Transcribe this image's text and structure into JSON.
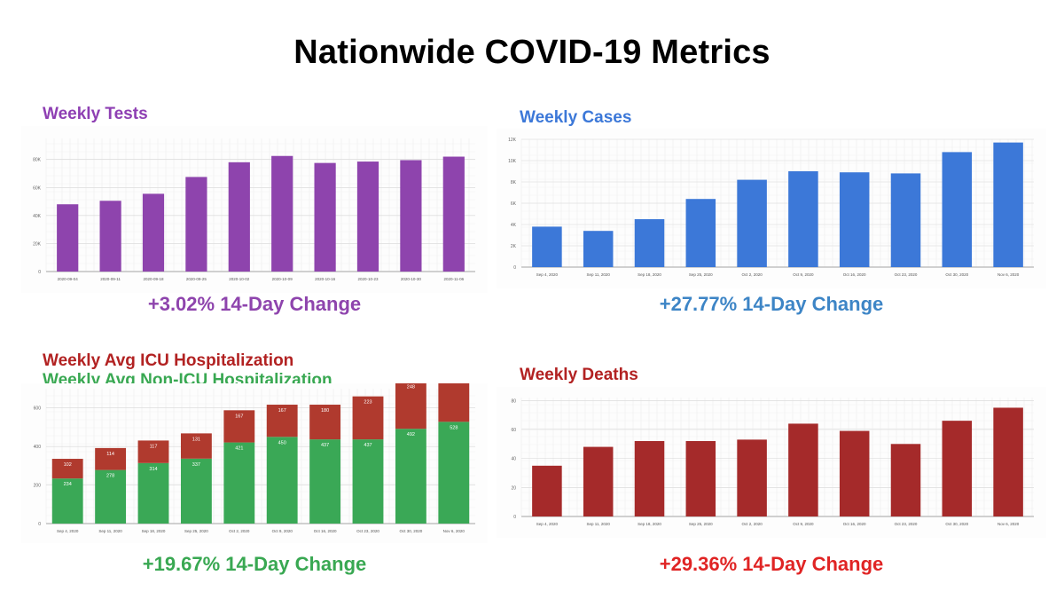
{
  "title": "Nationwide COVID-19 Metrics",
  "colors": {
    "purple": "#8e44ad",
    "blue": "#3c78d8",
    "darkred": "#a52a2a",
    "icu_red": "#b03a2e",
    "green": "#3aa856",
    "change_blue": "#3d85c6",
    "change_green": "#39a852",
    "change_red": "#e02424",
    "title_purple": "#8e3fb3",
    "title_red": "#b22222"
  },
  "panels": {
    "tests": {
      "title": "Weekly Tests",
      "change": "+3.02% 14-Day Change"
    },
    "cases": {
      "title": "Weekly Cases",
      "change": "+27.77% 14-Day Change"
    },
    "hosp": {
      "title_icu": "Weekly Avg ICU Hospitalization",
      "title_nonicu": "Weekly Avg Non-ICU Hospitalization",
      "change": "+19.67% 14-Day Change"
    },
    "deaths": {
      "title": "Weekly Deaths",
      "change": "+29.36% 14-Day Change"
    }
  },
  "chart_data": [
    {
      "id": "tests",
      "type": "bar",
      "title": "Weekly Tests",
      "categories": [
        "2020-09-04",
        "2020-09-11",
        "2020-09-18",
        "2020-09-25",
        "2020-10-02",
        "2020-10-09",
        "2020-10-16",
        "2020-10-23",
        "2020-10-30",
        "2020-11-06"
      ],
      "values": [
        48000,
        50500,
        55500,
        67500,
        78000,
        82500,
        77500,
        78500,
        79500,
        82000
      ],
      "yticks": [
        0,
        20000,
        40000,
        60000,
        80000
      ],
      "ytick_labels": [
        "0",
        "20K",
        "40K",
        "60K",
        "80K"
      ],
      "ylim": [
        0,
        95000
      ]
    },
    {
      "id": "cases",
      "type": "bar",
      "title": "Weekly Cases",
      "categories": [
        "Sep 4, 2020",
        "Sep 11, 2020",
        "Sep 18, 2020",
        "Sep 25, 2020",
        "Oct 2, 2020",
        "Oct 9, 2020",
        "Oct 16, 2020",
        "Oct 23, 2020",
        "Oct 30, 2020",
        "Nov 6, 2020"
      ],
      "values": [
        3800,
        3400,
        4500,
        6400,
        8200,
        9000,
        8900,
        8800,
        10800,
        11700
      ],
      "yticks": [
        0,
        2000,
        4000,
        6000,
        8000,
        10000,
        12000
      ],
      "ytick_labels": [
        "0",
        "2K",
        "4K",
        "6K",
        "8K",
        "10K",
        "12K"
      ],
      "ylim": [
        0,
        12000
      ]
    },
    {
      "id": "hosp",
      "type": "bar",
      "stacked": true,
      "categories": [
        "Sep 4, 2020",
        "Sep 11, 2020",
        "Sep 18, 2020",
        "Sep 25, 2020",
        "Oct 2, 2020",
        "Oct 9, 2020",
        "Oct 16, 2020",
        "Oct 23, 2020",
        "Oct 30, 2020",
        "Nov 6, 2020"
      ],
      "series": [
        {
          "name": "Weekly Avg Non-ICU Hospitalization",
          "values": [
            234,
            278,
            314,
            337,
            421,
            450,
            437,
            437,
            492,
            528
          ],
          "labels": [
            "234",
            "278",
            "314",
            "337",
            "421",
            "450",
            "437",
            "437",
            "492",
            "528"
          ]
        },
        {
          "name": "Weekly Avg ICU Hospitalization",
          "values": [
            102,
            114,
            117,
            131,
            167,
            167,
            180,
            223,
            248,
            264
          ],
          "labels": [
            "102",
            "114",
            "117",
            "131",
            "167",
            "167",
            "180",
            "223",
            "248",
            "264"
          ]
        }
      ],
      "yticks": [
        0,
        200,
        400,
        600
      ],
      "ytick_labels": [
        "0",
        "200",
        "400",
        "600"
      ],
      "ylim": [
        0,
        700
      ]
    },
    {
      "id": "deaths",
      "type": "bar",
      "title": "Weekly Deaths",
      "categories": [
        "Sep 4, 2020",
        "Sep 11, 2020",
        "Sep 18, 2020",
        "Sep 25, 2020",
        "Oct 2, 2020",
        "Oct 9, 2020",
        "Oct 16, 2020",
        "Oct 23, 2020",
        "Oct 30, 2020",
        "Nov 6, 2020"
      ],
      "values": [
        35,
        48,
        52,
        52,
        53,
        64,
        59,
        50,
        66,
        75
      ],
      "yticks": [
        0,
        20,
        40,
        60,
        80
      ],
      "ytick_labels": [
        "0",
        "20",
        "40",
        "60",
        "80"
      ],
      "ylim": [
        0,
        82
      ]
    }
  ]
}
